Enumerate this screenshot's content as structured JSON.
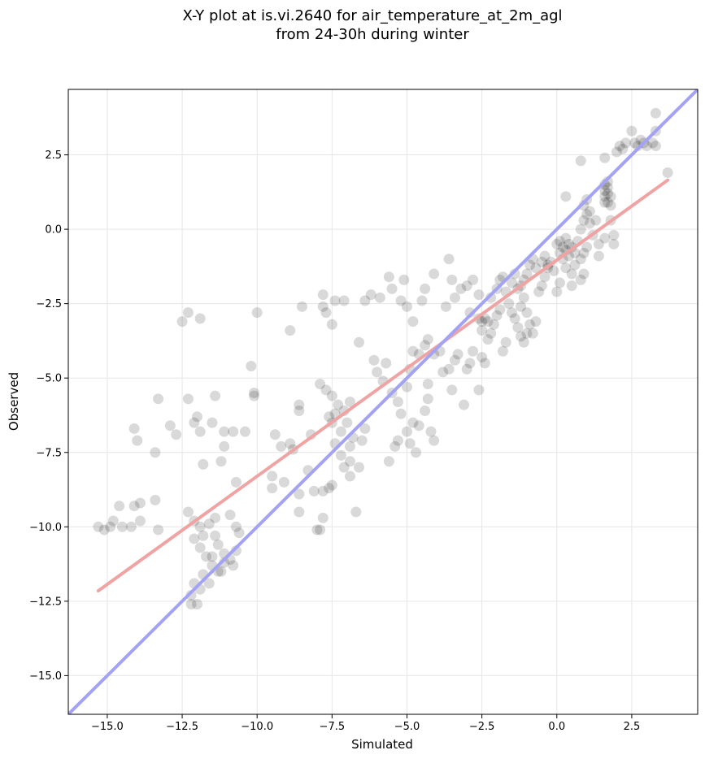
{
  "chart_data": {
    "type": "scatter",
    "title": "X-Y plot at is.vi.2640 for air_temperature_at_2m_agl",
    "subtitle": "from 24-30h during winter",
    "xlabel": "Simulated",
    "ylabel": "Observed",
    "xlim": [
      -16.3,
      4.7
    ],
    "ylim": [
      -16.3,
      4.7
    ],
    "grid": true,
    "xticks": [
      -15.0,
      -12.5,
      -10.0,
      -7.5,
      -5.0,
      -2.5,
      0.0,
      2.5
    ],
    "yticks": [
      -15.0,
      -12.5,
      -10.0,
      -7.5,
      -5.0,
      -2.5,
      0.0,
      2.5
    ],
    "xtick_labels": [
      "−15.0",
      "−12.5",
      "−10.0",
      "−7.5",
      "−5.0",
      "−2.5",
      "0.0",
      "2.5"
    ],
    "ytick_labels": [
      "−15.0",
      "−12.5",
      "−10.0",
      "−7.5",
      "−5.0",
      "−2.5",
      "0.0",
      "2.5"
    ],
    "point_color": "#000000",
    "series": [
      {
        "points": [
          [
            -15.3,
            -10.0
          ],
          [
            -15.1,
            -10.1
          ],
          [
            -14.9,
            -10.0
          ],
          [
            -14.8,
            -9.8
          ],
          [
            -14.6,
            -9.3
          ],
          [
            -14.5,
            -10.0
          ],
          [
            -14.2,
            -10.0
          ],
          [
            -14.1,
            -9.3
          ],
          [
            -13.9,
            -9.2
          ],
          [
            -13.9,
            -9.8
          ],
          [
            -13.4,
            -9.1
          ],
          [
            -13.3,
            -10.1
          ],
          [
            -14.1,
            -6.7
          ],
          [
            -14.0,
            -7.1
          ],
          [
            -13.4,
            -7.5
          ],
          [
            -13.3,
            -5.7
          ],
          [
            -12.9,
            -6.6
          ],
          [
            -12.7,
            -6.9
          ],
          [
            -12.5,
            -3.1
          ],
          [
            -12.3,
            -2.8
          ],
          [
            -12.3,
            -5.7
          ],
          [
            -12.1,
            -6.5
          ],
          [
            -12.0,
            -6.3
          ],
          [
            -11.9,
            -3.0
          ],
          [
            -11.9,
            -6.8
          ],
          [
            -11.8,
            -7.9
          ],
          [
            -11.5,
            -6.5
          ],
          [
            -11.4,
            -5.6
          ],
          [
            -11.2,
            -7.8
          ],
          [
            -11.1,
            -7.3
          ],
          [
            -11.1,
            -6.8
          ],
          [
            -10.8,
            -6.8
          ],
          [
            -10.4,
            -6.8
          ],
          [
            -10.7,
            -8.5
          ],
          [
            -10.2,
            -4.6
          ],
          [
            -10.1,
            -5.6
          ],
          [
            -10.1,
            -5.5
          ],
          [
            -10.0,
            -2.8
          ],
          [
            -9.5,
            -8.3
          ],
          [
            -9.5,
            -8.7
          ],
          [
            -9.4,
            -6.9
          ],
          [
            -9.2,
            -7.3
          ],
          [
            -9.1,
            -8.5
          ],
          [
            -8.9,
            -7.2
          ],
          [
            -8.8,
            -7.4
          ],
          [
            -8.9,
            -3.4
          ],
          [
            -8.6,
            -5.9
          ],
          [
            -8.6,
            -6.1
          ],
          [
            -8.5,
            -2.6
          ],
          [
            -8.6,
            -8.9
          ],
          [
            -8.6,
            -9.5
          ],
          [
            -8.3,
            -8.1
          ],
          [
            -8.2,
            -6.9
          ],
          [
            -8.1,
            -8.8
          ],
          [
            -8.0,
            -10.1
          ],
          [
            -7.9,
            -10.1
          ],
          [
            -7.8,
            -9.7
          ],
          [
            -7.8,
            -8.8
          ],
          [
            -7.6,
            -8.7
          ],
          [
            -7.5,
            -8.6
          ],
          [
            -7.8,
            -2.2
          ],
          [
            -7.8,
            -2.6
          ],
          [
            -7.7,
            -2.8
          ],
          [
            -7.5,
            -3.2
          ],
          [
            -7.4,
            -2.4
          ],
          [
            -7.1,
            -2.4
          ],
          [
            -7.9,
            -5.2
          ],
          [
            -7.7,
            -5.4
          ],
          [
            -7.5,
            -5.6
          ],
          [
            -7.3,
            -5.9
          ],
          [
            -7.1,
            -6.1
          ],
          [
            -6.9,
            -5.8
          ],
          [
            -7.6,
            -6.3
          ],
          [
            -7.5,
            -6.5
          ],
          [
            -7.4,
            -6.2
          ],
          [
            -7.2,
            -6.8
          ],
          [
            -7.0,
            -6.5
          ],
          [
            -6.8,
            -7.0
          ],
          [
            -7.4,
            -7.2
          ],
          [
            -7.2,
            -7.6
          ],
          [
            -7.1,
            -8.0
          ],
          [
            -6.9,
            -7.3
          ],
          [
            -6.9,
            -7.8
          ],
          [
            -6.9,
            -8.3
          ],
          [
            -6.6,
            -8.0
          ],
          [
            -6.5,
            -7.1
          ],
          [
            -6.4,
            -6.7
          ],
          [
            -6.7,
            -9.5
          ],
          [
            -6.6,
            -3.8
          ],
          [
            -6.4,
            -2.4
          ],
          [
            -6.2,
            -2.2
          ],
          [
            -6.1,
            -4.4
          ],
          [
            -6.0,
            -4.8
          ],
          [
            -5.8,
            -5.1
          ],
          [
            -5.7,
            -4.5
          ],
          [
            -5.9,
            -2.3
          ],
          [
            -5.6,
            -1.6
          ],
          [
            -5.5,
            -2.0
          ],
          [
            -5.2,
            -2.4
          ],
          [
            -5.1,
            -1.7
          ],
          [
            -5.0,
            -2.6
          ],
          [
            -4.8,
            -3.1
          ],
          [
            -5.5,
            -5.5
          ],
          [
            -5.3,
            -5.8
          ],
          [
            -5.2,
            -6.2
          ],
          [
            -5.0,
            -5.3
          ],
          [
            -4.9,
            -4.7
          ],
          [
            -4.8,
            -6.5
          ],
          [
            -5.6,
            -7.8
          ],
          [
            -5.4,
            -7.3
          ],
          [
            -5.3,
            -7.1
          ],
          [
            -5.0,
            -6.8
          ],
          [
            -4.9,
            -7.2
          ],
          [
            -4.7,
            -7.5
          ],
          [
            -4.6,
            -6.6
          ],
          [
            -4.4,
            -6.1
          ],
          [
            -4.3,
            -5.7
          ],
          [
            -4.3,
            -5.2
          ],
          [
            -4.2,
            -6.8
          ],
          [
            -4.1,
            -7.1
          ],
          [
            -4.8,
            -4.1
          ],
          [
            -4.6,
            -4.2
          ],
          [
            -4.4,
            -3.9
          ],
          [
            -4.3,
            -3.7
          ],
          [
            -4.1,
            -4.2
          ],
          [
            -3.9,
            -4.1
          ],
          [
            -4.5,
            -2.4
          ],
          [
            -4.4,
            -2.0
          ],
          [
            -4.1,
            -1.5
          ],
          [
            -3.7,
            -2.6
          ],
          [
            -3.6,
            -1.0
          ],
          [
            -3.5,
            -1.7
          ],
          [
            -3.4,
            -2.3
          ],
          [
            -3.2,
            -2.0
          ],
          [
            -3.0,
            -1.9
          ],
          [
            -2.9,
            -2.8
          ],
          [
            -2.8,
            -1.7
          ],
          [
            -2.6,
            -2.2
          ],
          [
            -3.8,
            -4.8
          ],
          [
            -3.6,
            -4.7
          ],
          [
            -3.5,
            -5.4
          ],
          [
            -3.4,
            -4.4
          ],
          [
            -3.3,
            -4.2
          ],
          [
            -3.1,
            -5.9
          ],
          [
            -3.0,
            -4.7
          ],
          [
            -2.9,
            -4.5
          ],
          [
            -2.8,
            -4.1
          ],
          [
            -2.6,
            -5.4
          ],
          [
            -2.5,
            -4.3
          ],
          [
            -2.4,
            -4.5
          ],
          [
            -2.6,
            -3.0
          ],
          [
            -2.5,
            -3.1
          ],
          [
            -2.4,
            -3.0
          ],
          [
            -2.3,
            -3.1
          ],
          [
            -2.5,
            -3.4
          ],
          [
            -2.3,
            -3.7
          ],
          [
            -2.2,
            -3.5
          ],
          [
            -2.1,
            -3.2
          ],
          [
            -2.0,
            -2.9
          ],
          [
            -1.9,
            -2.7
          ],
          [
            -1.8,
            -4.1
          ],
          [
            -1.7,
            -3.8
          ],
          [
            -2.2,
            -2.3
          ],
          [
            -2.0,
            -2.0
          ],
          [
            -1.9,
            -1.7
          ],
          [
            -1.8,
            -1.6
          ],
          [
            -1.7,
            -2.1
          ],
          [
            -1.6,
            -2.5
          ],
          [
            -1.5,
            -2.8
          ],
          [
            -1.4,
            -3.0
          ],
          [
            -1.3,
            -3.3
          ],
          [
            -1.2,
            -2.6
          ],
          [
            -1.1,
            -2.3
          ],
          [
            -1.0,
            -2.8
          ],
          [
            -1.5,
            -1.8
          ],
          [
            -1.4,
            -1.5
          ],
          [
            -1.3,
            -2.0
          ],
          [
            -1.2,
            -1.9
          ],
          [
            -1.1,
            -1.7
          ],
          [
            -1.0,
            -1.5
          ],
          [
            -1.2,
            -3.6
          ],
          [
            -1.1,
            -3.8
          ],
          [
            -1.0,
            -3.5
          ],
          [
            -0.9,
            -3.2
          ],
          [
            -0.8,
            -3.5
          ],
          [
            -0.7,
            -3.1
          ],
          [
            -0.6,
            -2.1
          ],
          [
            -0.5,
            -1.9
          ],
          [
            -0.4,
            -1.6
          ],
          [
            -0.3,
            -1.3
          ],
          [
            -0.2,
            -1.1
          ],
          [
            -0.1,
            -1.4
          ],
          [
            -0.9,
            -1.2
          ],
          [
            -0.8,
            -1.0
          ],
          [
            -0.7,
            -1.3
          ],
          [
            -0.5,
            -1.1
          ],
          [
            -0.4,
            -0.9
          ],
          [
            -0.3,
            -1.2
          ],
          [
            0.0,
            -0.5
          ],
          [
            0.1,
            -0.4
          ],
          [
            0.2,
            -0.6
          ],
          [
            0.3,
            -0.3
          ],
          [
            0.4,
            -0.5
          ],
          [
            0.3,
            -0.7
          ],
          [
            0.1,
            -0.8
          ],
          [
            0.2,
            -1.0
          ],
          [
            0.4,
            -0.9
          ],
          [
            0.5,
            -0.6
          ],
          [
            0.6,
            -0.8
          ],
          [
            0.7,
            -0.4
          ],
          [
            0.3,
            -1.3
          ],
          [
            0.5,
            -1.5
          ],
          [
            0.6,
            -1.2
          ],
          [
            0.8,
            -1.0
          ],
          [
            0.9,
            -0.8
          ],
          [
            1.0,
            -0.6
          ],
          [
            0.1,
            -1.8
          ],
          [
            0.0,
            -2.1
          ],
          [
            0.5,
            -1.9
          ],
          [
            0.8,
            -1.7
          ],
          [
            0.9,
            -1.5
          ],
          [
            0.3,
            1.1
          ],
          [
            0.8,
            0.0
          ],
          [
            0.9,
            0.3
          ],
          [
            1.0,
            0.5
          ],
          [
            1.1,
            0.2
          ],
          [
            1.2,
            -0.2
          ],
          [
            1.4,
            -0.9
          ],
          [
            0.9,
            0.8
          ],
          [
            1.0,
            1.0
          ],
          [
            1.1,
            0.6
          ],
          [
            1.3,
            0.3
          ],
          [
            1.4,
            -0.5
          ],
          [
            1.6,
            -0.3
          ],
          [
            1.6,
            1.5
          ],
          [
            1.6,
            1.3
          ],
          [
            1.6,
            1.1
          ],
          [
            1.6,
            0.9
          ],
          [
            1.7,
            1.6
          ],
          [
            1.7,
            1.4
          ],
          [
            1.7,
            1.2
          ],
          [
            1.7,
            0.9
          ],
          [
            1.8,
            1.1
          ],
          [
            1.8,
            0.8
          ],
          [
            1.8,
            0.3
          ],
          [
            1.9,
            -0.2
          ],
          [
            1.9,
            -0.5
          ],
          [
            2.0,
            2.6
          ],
          [
            2.1,
            2.8
          ],
          [
            2.2,
            2.7
          ],
          [
            2.3,
            2.9
          ],
          [
            1.6,
            2.4
          ],
          [
            2.5,
            3.3
          ],
          [
            2.6,
            2.9
          ],
          [
            2.7,
            2.8
          ],
          [
            2.8,
            3.0
          ],
          [
            2.9,
            2.9
          ],
          [
            3.0,
            2.8
          ],
          [
            3.2,
            2.9
          ],
          [
            3.3,
            3.3
          ],
          [
            3.3,
            2.8
          ],
          [
            3.3,
            3.9
          ],
          [
            3.7,
            1.9
          ],
          [
            0.8,
            2.3
          ],
          [
            -12.3,
            -9.5
          ],
          [
            -12.1,
            -9.8
          ],
          [
            -11.9,
            -10.0
          ],
          [
            -11.8,
            -10.3
          ],
          [
            -11.6,
            -9.9
          ],
          [
            -11.4,
            -10.3
          ],
          [
            -11.4,
            -9.7
          ],
          [
            -11.3,
            -10.6
          ],
          [
            -11.1,
            -10.9
          ],
          [
            -10.9,
            -11.1
          ],
          [
            -10.8,
            -11.3
          ],
          [
            -10.7,
            -10.8
          ],
          [
            -12.1,
            -10.4
          ],
          [
            -11.9,
            -10.7
          ],
          [
            -11.7,
            -11.0
          ],
          [
            -11.5,
            -11.3
          ],
          [
            -11.3,
            -11.5
          ],
          [
            -11.1,
            -11.2
          ],
          [
            -11.8,
            -11.6
          ],
          [
            -11.6,
            -11.9
          ],
          [
            -11.9,
            -12.1
          ],
          [
            -12.2,
            -12.3
          ],
          [
            -12.2,
            -12.6
          ],
          [
            -12.0,
            -12.6
          ],
          [
            -10.9,
            -9.6
          ],
          [
            -10.7,
            -10.0
          ],
          [
            -10.6,
            -10.2
          ],
          [
            -11.2,
            -11.5
          ],
          [
            -11.5,
            -11.0
          ],
          [
            -12.1,
            -11.9
          ]
        ]
      }
    ],
    "lines": [
      {
        "name": "",
        "color": "#f0a3a3",
        "x": [
          -15.3,
          3.7
        ],
        "y": [
          -12.15,
          1.65
        ]
      },
      {
        "name": "",
        "color": "#a3a3f5",
        "x": [
          -16.3,
          4.7
        ],
        "y": [
          -16.3,
          4.7
        ]
      }
    ]
  }
}
